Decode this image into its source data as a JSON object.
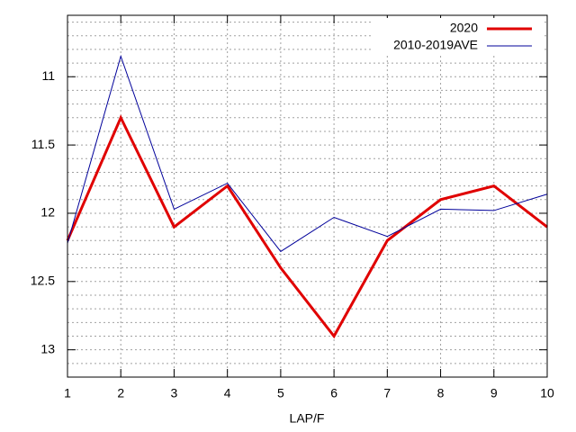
{
  "chart_data": {
    "type": "line",
    "xlabel": "LAP/F",
    "x": [
      1,
      2,
      3,
      4,
      5,
      6,
      7,
      8,
      9,
      10
    ],
    "series": [
      {
        "name": "2020",
        "color": "#e00000",
        "width": 3,
        "values": [
          12.2,
          11.3,
          12.1,
          11.8,
          12.4,
          12.9,
          12.2,
          11.9,
          11.8,
          12.1
        ]
      },
      {
        "name": "2010-2019AVE",
        "color": "#00009a",
        "width": 1,
        "values": [
          12.22,
          10.85,
          11.97,
          11.78,
          12.28,
          12.03,
          12.17,
          11.97,
          11.98,
          11.86
        ]
      }
    ],
    "xlim": [
      1,
      10
    ],
    "xticks": [
      1,
      2,
      3,
      4,
      5,
      6,
      7,
      8,
      9,
      10
    ],
    "ylim": [
      10.55,
      13.2
    ],
    "y_reversed": true,
    "yticks": [
      11,
      11.5,
      12,
      12.5,
      13
    ],
    "yminorticks": [
      10.6,
      10.7,
      10.8,
      10.9,
      11.1,
      11.2,
      11.3,
      11.4,
      11.6,
      11.7,
      11.8,
      11.9,
      12.1,
      12.2,
      12.3,
      12.4,
      12.6,
      12.7,
      12.8,
      12.9,
      13.1
    ],
    "grid": true,
    "legend": "top-right"
  }
}
